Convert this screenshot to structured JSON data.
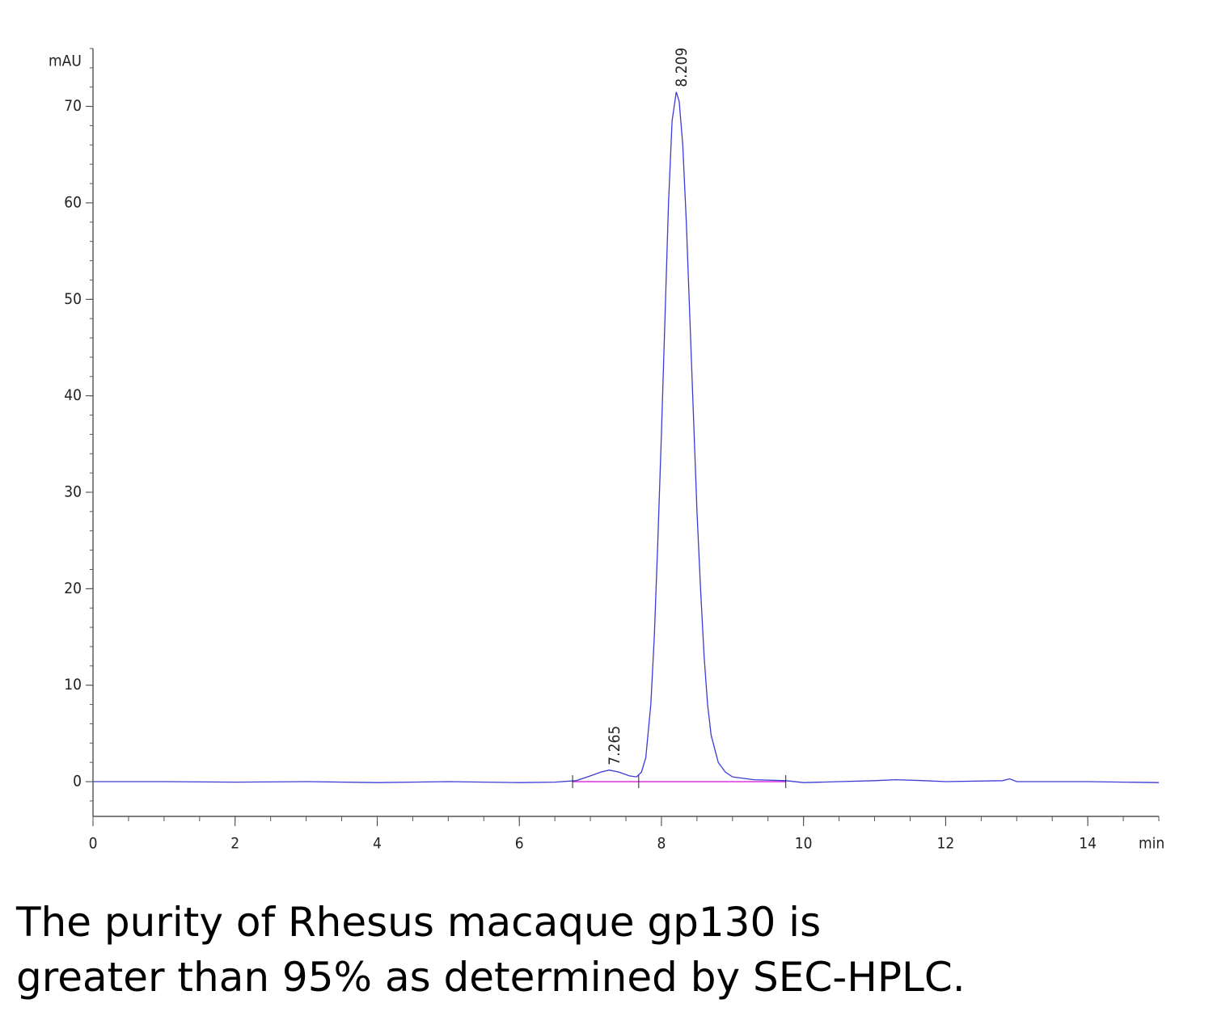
{
  "chart_data": {
    "type": "line",
    "y_label": "mAU",
    "x_label": "min",
    "xlim": [
      0,
      15
    ],
    "xticks": [
      0,
      2,
      4,
      6,
      8,
      10,
      12,
      14
    ],
    "ylim": [
      -3.6,
      76
    ],
    "yticks": [
      0,
      10,
      20,
      30,
      40,
      50,
      60,
      70
    ],
    "series": [
      {
        "name": "trace",
        "color": "#3b3bd6",
        "x": [
          0,
          1,
          2,
          3,
          4,
          5,
          6,
          6.5,
          6.8,
          7.0,
          7.15,
          7.265,
          7.4,
          7.55,
          7.65,
          7.72,
          7.78,
          7.85,
          7.9,
          7.95,
          8.0,
          8.05,
          8.1,
          8.15,
          8.209,
          8.25,
          8.3,
          8.35,
          8.4,
          8.45,
          8.5,
          8.55,
          8.6,
          8.65,
          8.7,
          8.8,
          8.9,
          9.0,
          9.3,
          9.75,
          10,
          10.5,
          11,
          11.3,
          11.7,
          12,
          12.8,
          12.9,
          13,
          14,
          15
        ],
        "values": [
          0,
          0,
          -0.05,
          0,
          -0.1,
          0,
          -0.1,
          -0.05,
          0.1,
          0.6,
          1.0,
          1.2,
          1.0,
          0.6,
          0.5,
          1.0,
          2.5,
          8,
          15,
          25,
          36,
          48,
          60,
          68.5,
          71.5,
          70.5,
          66,
          58,
          48,
          38,
          28,
          20,
          13,
          8,
          4.8,
          2,
          1,
          0.5,
          0.2,
          0.1,
          -0.1,
          0,
          0.1,
          0.2,
          0.1,
          0,
          0.1,
          0.3,
          0,
          0,
          -0.1
        ]
      }
    ],
    "baseline": {
      "color": "#e040e0",
      "x": [
        6.75,
        9.75
      ],
      "values": [
        0,
        0
      ]
    },
    "peak_bounds": [
      6.75,
      7.68,
      9.75
    ],
    "annotations": [
      {
        "x": 7.265,
        "y": 1.2,
        "text": "7.265"
      },
      {
        "x": 8.209,
        "y": 71.5,
        "text": "8.209"
      }
    ],
    "caption": [
      "The purity of Rhesus macaque gp130 is",
      "greater than 95% as determined by SEC-HPLC."
    ]
  }
}
